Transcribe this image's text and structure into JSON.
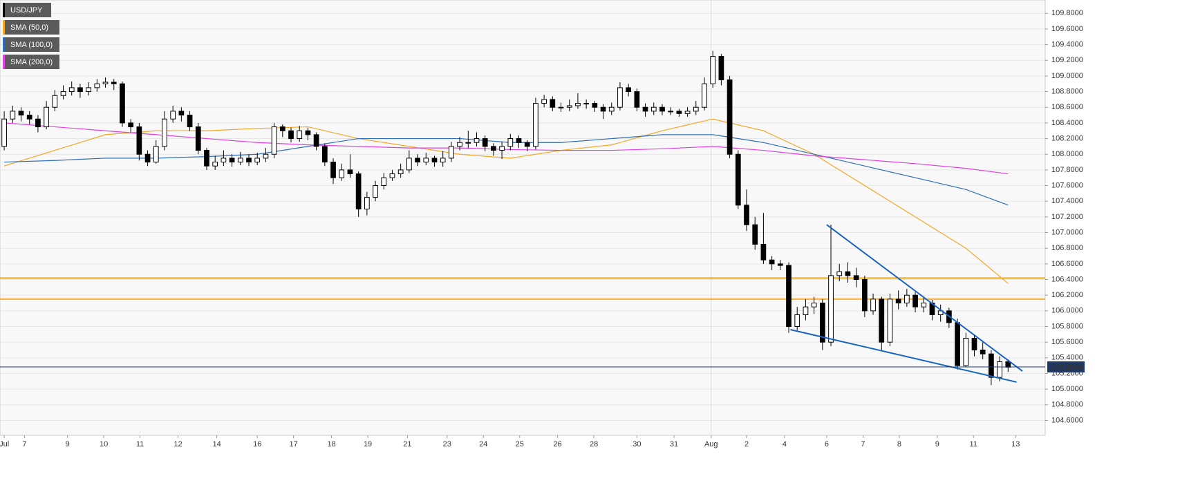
{
  "chart_data": {
    "type": "candlestick",
    "series": [
      {
        "name": "USD/JPY",
        "color": "#000000",
        "open": [
          108.1,
          108.45,
          108.55,
          108.5,
          108.45,
          108.35,
          108.6,
          108.75,
          108.8,
          108.85,
          108.8,
          108.85,
          108.9,
          108.92,
          108.9,
          108.4,
          108.35,
          108.0,
          107.9,
          108.1,
          108.45,
          108.55,
          108.5,
          108.35,
          108.05,
          107.85,
          107.9,
          107.95,
          107.9,
          107.95,
          107.9,
          107.95,
          108.0,
          108.35,
          108.3,
          108.2,
          108.3,
          108.25,
          108.1,
          107.9,
          107.7,
          107.8,
          107.75,
          107.3,
          107.45,
          107.6,
          107.7,
          107.75,
          107.8,
          107.95,
          107.9,
          107.95,
          107.9,
          107.95,
          108.1,
          108.15,
          108.15,
          108.2,
          108.1,
          108.05,
          108.1,
          108.2,
          108.15,
          108.1,
          108.65,
          108.7,
          108.6,
          108.6,
          108.62,
          108.65,
          108.65,
          108.6,
          108.55,
          108.6,
          108.85,
          108.8,
          108.6,
          108.55,
          108.6,
          108.55,
          108.55,
          108.52,
          108.55,
          108.6,
          108.9,
          109.25,
          108.95,
          108.0,
          107.35,
          107.1,
          106.85,
          106.65,
          106.6,
          106.58,
          105.8,
          105.95,
          106.05,
          106.1,
          105.6,
          106.45,
          106.5,
          106.45,
          106.4,
          106.0,
          106.15,
          105.6,
          106.15,
          106.1,
          106.2,
          106.05,
          106.1,
          105.95,
          106.0,
          105.85,
          105.3,
          105.65,
          105.5,
          105.45,
          105.15,
          105.35
        ],
        "high": [
          108.55,
          108.62,
          108.6,
          108.55,
          108.5,
          108.68,
          108.82,
          108.88,
          108.93,
          108.9,
          108.92,
          108.96,
          108.98,
          108.96,
          108.93,
          108.45,
          108.4,
          108.05,
          108.18,
          108.55,
          108.62,
          108.6,
          108.55,
          108.4,
          108.08,
          107.98,
          108.05,
          108.0,
          108.03,
          108.0,
          108.02,
          108.08,
          108.4,
          108.38,
          108.34,
          108.36,
          108.34,
          108.28,
          108.14,
          107.95,
          107.88,
          108.0,
          107.78,
          107.52,
          107.66,
          107.76,
          107.8,
          107.88,
          108.05,
          108.0,
          108.02,
          107.98,
          108.04,
          108.16,
          108.22,
          108.3,
          108.28,
          108.24,
          108.14,
          108.16,
          108.26,
          108.24,
          108.18,
          108.72,
          108.76,
          108.74,
          108.66,
          108.7,
          108.78,
          108.7,
          108.68,
          108.64,
          108.66,
          108.92,
          108.9,
          108.84,
          108.65,
          108.66,
          108.64,
          108.6,
          108.58,
          108.6,
          108.68,
          108.98,
          109.32,
          109.28,
          109.0,
          108.05,
          107.55,
          107.2,
          107.25,
          106.7,
          106.65,
          106.62,
          106.05,
          106.15,
          106.18,
          106.15,
          107.1,
          106.6,
          106.62,
          106.55,
          106.45,
          106.22,
          106.18,
          106.22,
          106.26,
          106.28,
          106.24,
          106.18,
          106.14,
          106.08,
          106.04,
          105.9,
          105.72,
          105.7,
          105.6,
          105.5,
          105.42,
          105.38
        ],
        "low": [
          108.05,
          108.4,
          108.42,
          108.38,
          108.28,
          108.32,
          108.55,
          108.7,
          108.75,
          108.72,
          108.75,
          108.8,
          108.85,
          108.82,
          108.35,
          108.28,
          107.92,
          107.85,
          107.88,
          108.05,
          108.4,
          108.42,
          108.3,
          108.0,
          107.8,
          107.8,
          107.85,
          107.84,
          107.86,
          107.85,
          107.86,
          107.9,
          107.95,
          108.22,
          108.15,
          108.16,
          108.18,
          108.05,
          107.85,
          107.62,
          107.66,
          107.7,
          107.2,
          107.22,
          107.4,
          107.55,
          107.66,
          107.7,
          107.76,
          107.85,
          107.86,
          107.84,
          107.84,
          107.9,
          108.05,
          108.08,
          108.1,
          108.04,
          107.98,
          107.94,
          108.05,
          108.08,
          108.04,
          108.06,
          108.6,
          108.55,
          108.54,
          108.55,
          108.58,
          108.58,
          108.54,
          108.45,
          108.5,
          108.56,
          108.74,
          108.55,
          108.48,
          108.5,
          108.5,
          108.5,
          108.48,
          108.48,
          108.5,
          108.56,
          108.85,
          108.88,
          107.95,
          107.3,
          107.02,
          106.78,
          106.6,
          106.52,
          106.52,
          105.72,
          105.75,
          105.88,
          105.96,
          105.5,
          105.55,
          106.38,
          106.36,
          106.3,
          105.92,
          105.95,
          105.5,
          105.55,
          106.02,
          106.05,
          105.98,
          105.98,
          105.88,
          105.86,
          105.78,
          105.25,
          105.28,
          105.42,
          105.38,
          105.05,
          105.1,
          105.22
        ],
        "close": [
          108.45,
          108.55,
          108.5,
          108.45,
          108.35,
          108.6,
          108.75,
          108.8,
          108.85,
          108.8,
          108.85,
          108.9,
          108.92,
          108.9,
          108.4,
          108.35,
          108.0,
          107.9,
          108.1,
          108.45,
          108.55,
          108.5,
          108.35,
          108.05,
          107.85,
          107.9,
          107.95,
          107.9,
          107.95,
          107.9,
          107.95,
          108.0,
          108.35,
          108.3,
          108.2,
          108.3,
          108.25,
          108.1,
          107.9,
          107.7,
          107.8,
          107.75,
          107.3,
          107.45,
          107.6,
          107.7,
          107.75,
          107.8,
          107.95,
          107.9,
          107.95,
          107.9,
          107.95,
          108.1,
          108.15,
          108.15,
          108.2,
          108.1,
          108.05,
          108.1,
          108.2,
          108.15,
          108.1,
          108.65,
          108.7,
          108.6,
          108.6,
          108.62,
          108.65,
          108.65,
          108.6,
          108.55,
          108.6,
          108.85,
          108.8,
          108.6,
          108.55,
          108.6,
          108.55,
          108.55,
          108.52,
          108.55,
          108.6,
          108.9,
          109.25,
          108.95,
          108.0,
          107.35,
          107.1,
          106.85,
          106.65,
          106.6,
          106.58,
          105.8,
          105.95,
          106.05,
          106.1,
          105.6,
          106.45,
          106.5,
          106.45,
          106.4,
          106.0,
          106.15,
          105.6,
          106.15,
          106.1,
          106.2,
          106.05,
          106.1,
          105.95,
          106.0,
          105.85,
          105.3,
          105.65,
          105.5,
          105.45,
          105.15,
          105.35,
          105.28
        ]
      }
    ],
    "indicator_x": [
      0,
      6,
      12,
      18,
      24,
      30,
      36,
      42,
      48,
      54,
      60,
      66,
      72,
      78,
      84,
      90,
      96,
      102,
      108,
      114,
      119
    ],
    "indicators": [
      {
        "name": "SMA (50,0)",
        "color": "#f5a623",
        "values": [
          107.85,
          108.05,
          108.25,
          108.3,
          108.3,
          108.33,
          108.35,
          108.2,
          108.1,
          108.0,
          107.95,
          108.05,
          108.12,
          108.3,
          108.45,
          108.3,
          108.0,
          107.6,
          107.2,
          106.8,
          106.35
        ]
      },
      {
        "name": "SMA (100,0)",
        "color": "#2f6db5",
        "values": [
          107.9,
          107.92,
          107.95,
          107.95,
          107.97,
          108.0,
          108.1,
          108.2,
          108.2,
          108.2,
          108.15,
          108.15,
          108.2,
          108.25,
          108.25,
          108.15,
          108.0,
          107.85,
          107.7,
          107.55,
          107.35
        ]
      },
      {
        "name": "SMA (200,0)",
        "color": "#e040e0",
        "values": [
          108.4,
          108.35,
          108.3,
          108.25,
          108.2,
          108.15,
          108.12,
          108.1,
          108.08,
          108.08,
          108.06,
          108.05,
          108.05,
          108.07,
          108.1,
          108.05,
          107.98,
          107.93,
          107.88,
          107.82,
          107.75
        ]
      }
    ],
    "levels": [
      106.42,
      106.15
    ],
    "level_color": "#f39200",
    "trendlines": [
      {
        "x": [
          97.5,
          120.7
        ],
        "values": [
          107.1,
          105.23
        ]
      },
      {
        "x": [
          93.2,
          120
        ],
        "values": [
          105.76,
          105.09
        ]
      }
    ],
    "trendline_color": "#1565c0",
    "last_price": {
      "value": 105.284,
      "label": "105.2840"
    },
    "last_price_color": "#1f3864",
    "xlim": [
      -0.5,
      123.4
    ],
    "ylim": [
      104.41,
      109.97
    ],
    "xticks": [
      {
        "value": 0,
        "label": "Jul"
      },
      {
        "value": 2.4,
        "label": "7"
      },
      {
        "value": 7.5,
        "label": "9"
      },
      {
        "value": 11.8,
        "label": "10"
      },
      {
        "value": 16.1,
        "label": "11"
      },
      {
        "value": 20.6,
        "label": "12"
      },
      {
        "value": 25.2,
        "label": "14"
      },
      {
        "value": 30,
        "label": "16"
      },
      {
        "value": 34.3,
        "label": "17"
      },
      {
        "value": 38.8,
        "label": "18"
      },
      {
        "value": 43.1,
        "label": "19"
      },
      {
        "value": 47.8,
        "label": "21"
      },
      {
        "value": 52.5,
        "label": "23"
      },
      {
        "value": 56.8,
        "label": "24"
      },
      {
        "value": 61.1,
        "label": "25"
      },
      {
        "value": 65.6,
        "label": "26"
      },
      {
        "value": 69.9,
        "label": "28"
      },
      {
        "value": 75,
        "label": "30"
      },
      {
        "value": 79.4,
        "label": "31"
      },
      {
        "value": 83.8,
        "label": "Aug"
      },
      {
        "value": 88,
        "label": "2"
      },
      {
        "value": 92.5,
        "label": "4"
      },
      {
        "value": 97.5,
        "label": "6"
      },
      {
        "value": 101.8,
        "label": "7"
      },
      {
        "value": 106.1,
        "label": "8"
      },
      {
        "value": 110.6,
        "label": "9"
      },
      {
        "value": 114.9,
        "label": "11"
      },
      {
        "value": 119.9,
        "label": "13"
      }
    ],
    "month_divider": 83.8,
    "yticks": [
      {
        "value": 104.6,
        "label": "104.6000"
      },
      {
        "value": 104.8,
        "label": "104.8000"
      },
      {
        "value": 105,
        "label": "105.0000"
      },
      {
        "value": 105.2,
        "label": "105.2000"
      },
      {
        "value": 105.4,
        "label": "105.4000"
      },
      {
        "value": 105.6,
        "label": "105.6000"
      },
      {
        "value": 105.8,
        "label": "105.8000"
      },
      {
        "value": 106,
        "label": "106.0000"
      },
      {
        "value": 106.2,
        "label": "106.2000"
      },
      {
        "value": 106.4,
        "label": "106.4000"
      },
      {
        "value": 106.6,
        "label": "106.6000"
      },
      {
        "value": 106.8,
        "label": "106.8000"
      },
      {
        "value": 107,
        "label": "107.0000"
      },
      {
        "value": 107.2,
        "label": "107.2000"
      },
      {
        "value": 107.4,
        "label": "107.4000"
      },
      {
        "value": 107.6,
        "label": "107.6000"
      },
      {
        "value": 107.8,
        "label": "107.8000"
      },
      {
        "value": 108,
        "label": "108.0000"
      },
      {
        "value": 108.2,
        "label": "108.2000"
      },
      {
        "value": 108.4,
        "label": "108.4000"
      },
      {
        "value": 108.6,
        "label": "108.6000"
      },
      {
        "value": 108.8,
        "label": "108.8000"
      },
      {
        "value": 109,
        "label": "109.0000"
      },
      {
        "value": 109.2,
        "label": "109.2000"
      },
      {
        "value": 109.4,
        "label": "109.4000"
      },
      {
        "value": 109.6,
        "label": "109.6000"
      },
      {
        "value": 109.8,
        "label": "109.8000"
      }
    ],
    "grid": true
  }
}
